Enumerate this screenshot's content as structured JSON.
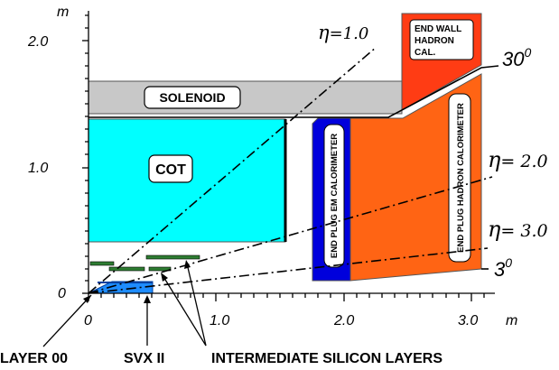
{
  "axes": {
    "y_unit": "m",
    "x_unit": "m",
    "y_ticks": [
      "0",
      "1.0",
      "2.0"
    ],
    "x_ticks": [
      "0",
      "1.0",
      "2.0",
      "3.0"
    ]
  },
  "detectors": {
    "solenoid": "SOLENOID",
    "cot": "COT",
    "end_wall": [
      "END WALL",
      "HADRON",
      "CAL."
    ],
    "end_plug_em": "END PLUG EM CALORIMETER",
    "end_plug_hadron": "END PLUG HADRON CALORIMETER"
  },
  "angles": {
    "eta_1": "=1.0",
    "eta_2": "= 2.0",
    "eta_3": "= 3.0",
    "eta_symbol": "η",
    "deg_30": "30",
    "deg_3": "3",
    "deg_sup": "0"
  },
  "bottom_labels": {
    "layer00": "LAYER 00",
    "svx": "SVX II",
    "isl": "INTERMEDIATE SILICON LAYERS"
  },
  "colors": {
    "solenoid": "#c8c8c8",
    "cot": "#00ffff",
    "end_wall": "#ff3c14",
    "em_cal": "#0000dc",
    "hadron_cal": "#ff6414",
    "silicon": "#2e7d32",
    "layer00": "#1e8cff"
  }
}
